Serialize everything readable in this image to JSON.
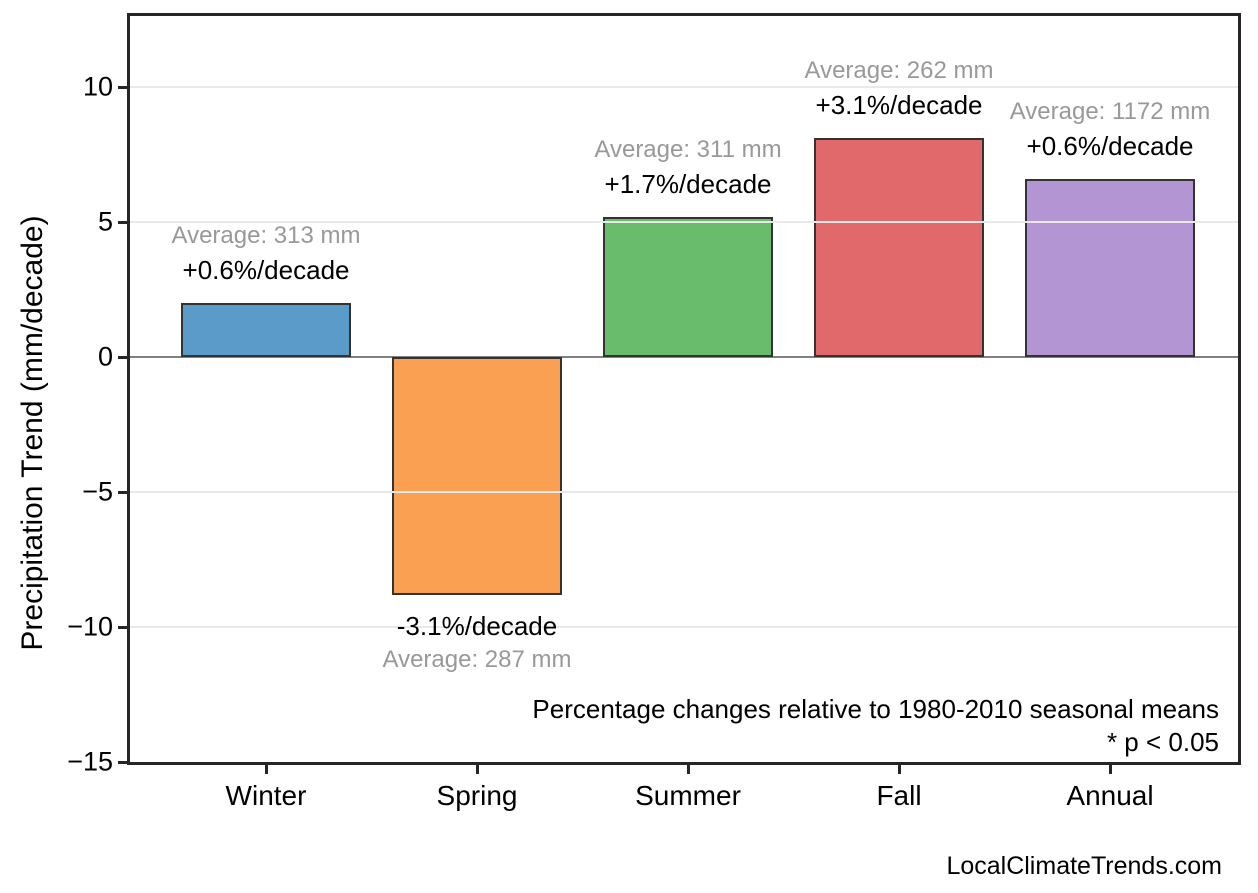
{
  "figure": {
    "background": "#ffffff",
    "watermark": "LocalClimateTrends.com"
  },
  "chart_data": {
    "type": "bar",
    "title": "",
    "xlabel": "",
    "ylabel": "Precipitation Trend (mm/decade)",
    "categories": [
      "Winter",
      "Spring",
      "Summer",
      "Fall",
      "Annual"
    ],
    "values": [
      2.0,
      -8.8,
      5.2,
      8.1,
      6.6
    ],
    "percent_labels": [
      "+0.6%/decade",
      "-3.1%/decade",
      "+1.7%/decade",
      "+3.1%/decade",
      "+0.6%/decade"
    ],
    "average_labels": [
      "Average: 313 mm",
      "Average: 287 mm",
      "Average: 311 mm",
      "Average: 262 mm",
      "Average: 1172 mm"
    ],
    "averages_mm": [
      313,
      287,
      311,
      262,
      1172
    ],
    "bar_colors": [
      "#5B9BC9",
      "#F9A052",
      "#68BC6B",
      "#E2696B",
      "#B295D2"
    ],
    "bar_edge_color": "#333333",
    "yticks": [
      10,
      5,
      0,
      -5,
      -10,
      -15
    ],
    "ytick_labels": [
      "10",
      "5",
      "0",
      "−5",
      "−10",
      "−15"
    ],
    "ylim": [
      -15,
      12.7
    ],
    "grid": true,
    "grid_color": "#e9e9e9",
    "zero_line_color": "#808080",
    "legend": "none",
    "annotations": {
      "line1": "Percentage changes relative to 1980-2010 seasonal means",
      "line2": "* p < 0.05"
    }
  }
}
